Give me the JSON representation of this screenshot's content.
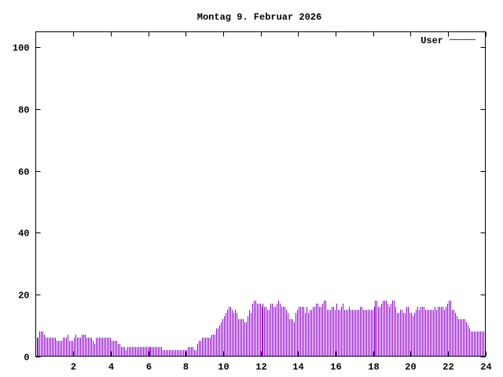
{
  "chart_data": {
    "type": "bar",
    "style": "impulses",
    "title": "Montag 9. Februar 2026",
    "xlabel": "",
    "ylabel": "",
    "xlim": [
      0,
      24
    ],
    "ylim": [
      0,
      105
    ],
    "x_ticks": [
      "2",
      "4",
      "6",
      "8",
      "10",
      "12",
      "14",
      "16",
      "18",
      "20",
      "22",
      "24"
    ],
    "y_ticks": [
      "0",
      "20",
      "40",
      "60",
      "80",
      "100"
    ],
    "grid": false,
    "legend_placement": "top-right",
    "x_step_minutes": 5,
    "series": [
      {
        "name": "User",
        "color": "#9400d3",
        "values": [
          6,
          6,
          8,
          8,
          8,
          7,
          6,
          6,
          6,
          6,
          6,
          6,
          6,
          5,
          5,
          5,
          5,
          6,
          6,
          6,
          7,
          5,
          5,
          5,
          6,
          7,
          6,
          6,
          6,
          7,
          7,
          7,
          6,
          6,
          6,
          6,
          5,
          4,
          6,
          6,
          6,
          6,
          6,
          6,
          6,
          6,
          6,
          6,
          5,
          5,
          5,
          5,
          4,
          4,
          3,
          3,
          3,
          2,
          3,
          3,
          3,
          3,
          3,
          3,
          3,
          3,
          3,
          3,
          3,
          3,
          3,
          3,
          3,
          3,
          3,
          3,
          3,
          3,
          3,
          3,
          3,
          2,
          2,
          2,
          2,
          2,
          2,
          2,
          2,
          2,
          2,
          2,
          2,
          2,
          2,
          2,
          2,
          3,
          3,
          3,
          3,
          2,
          2,
          4,
          5,
          5,
          6,
          6,
          6,
          6,
          6,
          6,
          7,
          7,
          7,
          9,
          9,
          10,
          11,
          12,
          13,
          14,
          15,
          16,
          16,
          15,
          14,
          15,
          14,
          12,
          12,
          12,
          12,
          11,
          11,
          13,
          15,
          14,
          17,
          18,
          18,
          17,
          17,
          17,
          16,
          17,
          16,
          16,
          15,
          15,
          17,
          17,
          16,
          16,
          17,
          18,
          17,
          16,
          16,
          16,
          15,
          14,
          12,
          12,
          12,
          11,
          14,
          15,
          16,
          16,
          16,
          16,
          14,
          16,
          14,
          15,
          15,
          16,
          16,
          17,
          17,
          16,
          16,
          17,
          18,
          18,
          15,
          15,
          15,
          16,
          16,
          15,
          17,
          15,
          15,
          16,
          17,
          15,
          15,
          15,
          16,
          15,
          15,
          15,
          15,
          15,
          15,
          16,
          16,
          15,
          15,
          15,
          15,
          15,
          15,
          15,
          16,
          18,
          18,
          16,
          16,
          17,
          18,
          18,
          18,
          17,
          16,
          17,
          18,
          18,
          16,
          14,
          14,
          15,
          15,
          14,
          14,
          16,
          16,
          14,
          14,
          13,
          14,
          15,
          16,
          15,
          16,
          16,
          16,
          15,
          15,
          15,
          15,
          15,
          15,
          16,
          15,
          16,
          16,
          16,
          16,
          15,
          16,
          17,
          18,
          18,
          15,
          15,
          14,
          13,
          12,
          12,
          12,
          12,
          12,
          11,
          10,
          9,
          8,
          8,
          8,
          8,
          8,
          8,
          8,
          8,
          8,
          7
        ]
      }
    ]
  }
}
